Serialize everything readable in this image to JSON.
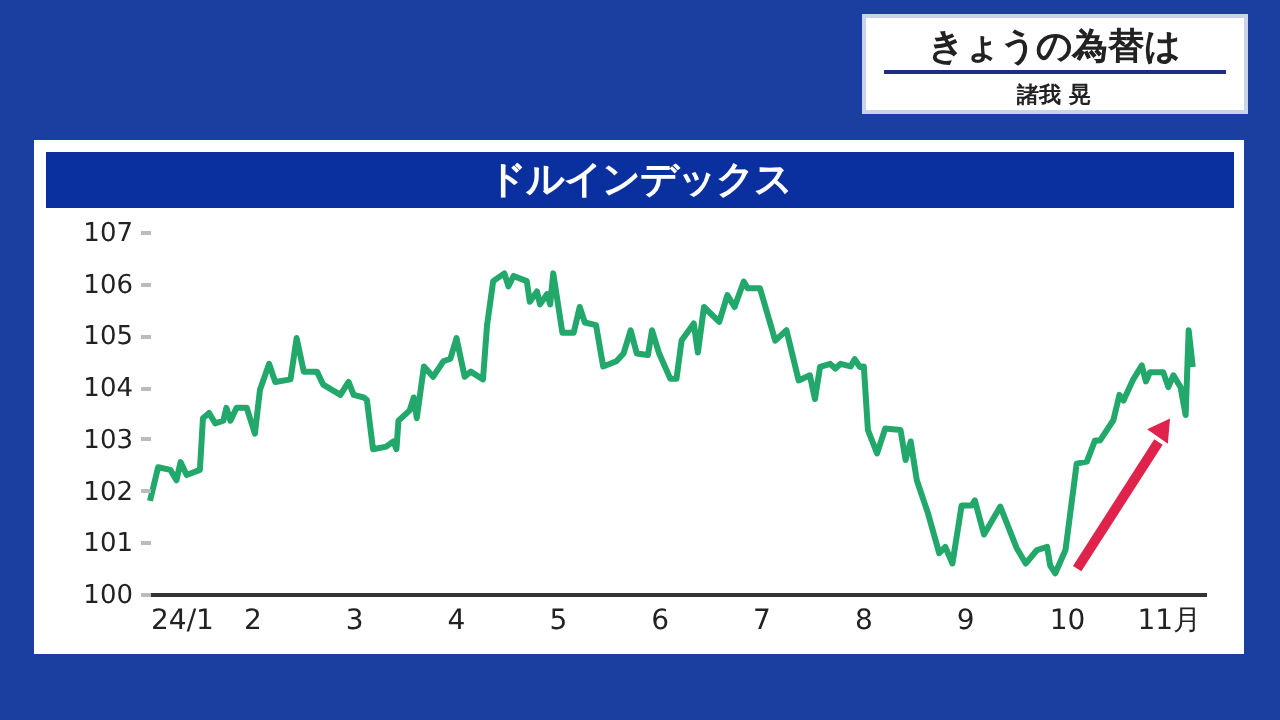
{
  "chart_data": {
    "type": "line",
    "title": "ドルインデックス",
    "annotations": [
      "きょうの為替は",
      "諸我 晃"
    ],
    "xlim": [
      1,
      11.37
    ],
    "ylim": [
      100,
      107
    ],
    "xticks": [
      {
        "value": 1,
        "label": "24/1"
      },
      2,
      3,
      4,
      5,
      6,
      7,
      8,
      9,
      10,
      {
        "value": 11,
        "label": "11月"
      }
    ],
    "yticks": [
      100,
      101,
      102,
      103,
      104,
      105,
      106,
      107
    ],
    "grid": false,
    "marker": "none",
    "line_style": "solid",
    "series": [
      {
        "color": "#22a86a",
        "x": [
          1.0,
          1.08,
          1.2,
          1.26,
          1.3,
          1.36,
          1.49,
          1.52,
          1.58,
          1.64,
          1.72,
          1.75,
          1.79,
          1.85,
          1.95,
          2.03,
          2.08,
          2.17,
          2.23,
          2.38,
          2.44,
          2.51,
          2.64,
          2.7,
          2.87,
          2.95,
          3.0,
          3.1,
          3.13,
          3.19,
          3.32,
          3.39,
          3.42,
          3.44,
          3.55,
          3.59,
          3.62,
          3.69,
          3.78,
          3.88,
          3.95,
          4.01,
          4.09,
          4.15,
          4.27,
          4.31,
          4.37,
          4.48,
          4.52,
          4.57,
          4.7,
          4.73,
          4.8,
          4.83,
          4.9,
          4.93,
          4.96,
          5.05,
          5.16,
          5.22,
          5.27,
          5.38,
          5.45,
          5.58,
          5.65,
          5.72,
          5.78,
          5.89,
          5.93,
          6.0,
          6.11,
          6.17,
          6.22,
          6.34,
          6.38,
          6.44,
          6.59,
          6.67,
          6.74,
          6.83,
          6.87,
          6.99,
          7.14,
          7.25,
          7.37,
          7.48,
          7.53,
          7.58,
          7.68,
          7.73,
          7.78,
          7.88,
          7.92,
          7.97,
          8.01,
          8.05,
          8.14,
          8.22,
          8.37,
          8.42,
          8.47,
          8.53,
          8.64,
          8.75,
          8.81,
          8.88,
          8.97,
          9.07,
          9.1,
          9.19,
          9.35,
          9.51,
          9.6,
          9.71,
          9.81,
          9.84,
          9.89,
          9.99,
          10.1,
          10.2,
          10.28,
          10.33,
          10.46,
          10.52,
          10.56,
          10.65,
          10.74,
          10.78,
          10.82,
          10.95,
          11.0,
          11.05,
          11.12,
          11.17,
          11.2,
          11.24
        ],
        "values": [
          101.8,
          102.45,
          102.4,
          102.2,
          102.55,
          102.3,
          102.4,
          103.4,
          103.5,
          103.3,
          103.35,
          103.6,
          103.35,
          103.6,
          103.6,
          103.1,
          103.95,
          104.45,
          104.1,
          104.15,
          104.95,
          104.3,
          104.3,
          104.05,
          103.85,
          104.1,
          103.85,
          103.8,
          103.75,
          102.8,
          102.85,
          102.95,
          102.8,
          103.35,
          103.55,
          103.8,
          103.4,
          104.4,
          104.2,
          104.5,
          104.55,
          104.95,
          104.2,
          104.3,
          104.15,
          105.2,
          106.05,
          106.2,
          105.95,
          106.15,
          106.05,
          105.65,
          105.85,
          105.6,
          105.8,
          105.6,
          106.2,
          105.05,
          105.05,
          105.55,
          105.25,
          105.2,
          104.4,
          104.5,
          104.65,
          105.1,
          104.65,
          104.62,
          105.1,
          104.65,
          104.16,
          104.16,
          104.9,
          105.23,
          104.67,
          105.55,
          105.26,
          105.78,
          105.55,
          106.04,
          105.91,
          105.91,
          104.9,
          105.1,
          104.13,
          104.23,
          103.77,
          104.39,
          104.45,
          104.36,
          104.45,
          104.4,
          104.54,
          104.39,
          104.4,
          103.17,
          102.72,
          103.2,
          103.17,
          102.59,
          102.95,
          102.2,
          101.56,
          100.79,
          100.91,
          100.59,
          101.71,
          101.71,
          101.81,
          101.15,
          101.69,
          100.89,
          100.59,
          100.85,
          100.91,
          100.55,
          100.4,
          100.85,
          102.52,
          102.56,
          102.97,
          102.97,
          103.36,
          103.85,
          103.74,
          104.13,
          104.42,
          104.11,
          104.29,
          104.29,
          104.0,
          104.23,
          104.0,
          103.46,
          105.1,
          104.39
        ]
      }
    ]
  }
}
